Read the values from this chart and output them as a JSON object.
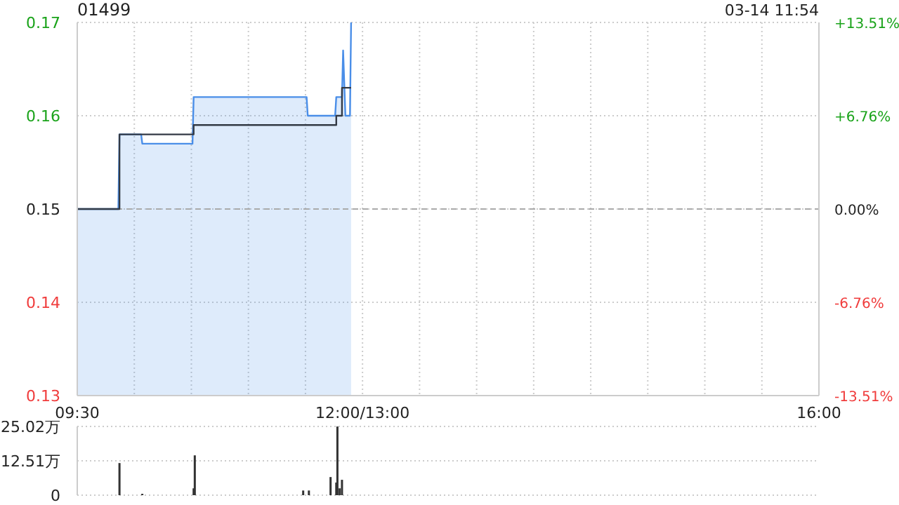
{
  "chart_data": [
    {
      "type": "area",
      "title": "01499",
      "annotations": [
        "03-14 11:54"
      ],
      "xlim": [
        9.5,
        16
      ],
      "xticks": [
        {
          "value": 9.5,
          "label": "09:30"
        },
        {
          "value": 10,
          "label": null
        },
        {
          "value": 10.5,
          "label": null
        },
        {
          "value": 11,
          "label": null
        },
        {
          "value": 11.5,
          "label": null
        },
        {
          "value": 12,
          "label": "12:00/13:00"
        },
        {
          "value": 12.5,
          "label": null
        },
        {
          "value": 13,
          "label": null
        },
        {
          "value": 13.5,
          "label": null
        },
        {
          "value": 14,
          "label": null
        },
        {
          "value": 14.5,
          "label": null
        },
        {
          "value": 15,
          "label": null
        },
        {
          "value": 15.5,
          "label": null
        },
        {
          "value": 16,
          "label": "16:00"
        }
      ],
      "ylim": [
        0.13,
        0.17
      ],
      "yticks": [
        0.13,
        0.14,
        0.15,
        0.16,
        0.17
      ],
      "y2lim": [
        -13.51,
        13.51
      ],
      "y2ticks": [
        {
          "value": -13.51,
          "label": "-13.51%"
        },
        {
          "value": -6.76,
          "label": "-6.76%"
        },
        {
          "value": 0,
          "label": "0.00%"
        },
        {
          "value": 6.76,
          "label": "+6.76%"
        },
        {
          "value": 13.51,
          "label": "+13.51%"
        }
      ],
      "grid": true,
      "marker": "none",
      "ref_lines": [
        {
          "axis": "y",
          "value": 0.15,
          "line_style": "dashed",
          "color": "#aaaaaa"
        }
      ],
      "series": [
        {
          "color": "#4a8ee8",
          "x": [
            9.5,
            9.86,
            9.87,
            10.06,
            10.07,
            10.51,
            10.52,
            11.51,
            11.52,
            11.76,
            11.77,
            11.82,
            11.83,
            11.85,
            11.89,
            11.9
          ],
          "values": [
            0.15,
            0.15,
            0.158,
            0.158,
            0.157,
            0.157,
            0.162,
            0.162,
            0.16,
            0.16,
            0.162,
            0.162,
            0.167,
            0.16,
            0.16,
            0.17
          ]
        },
        {
          "type": "step",
          "color": "#333a45",
          "x": [
            9.5,
            9.87,
            10.52,
            11.77,
            11.82,
            11.9
          ],
          "values": [
            0.15,
            0.158,
            0.159,
            0.16,
            0.163,
            0.163
          ]
        }
      ]
    },
    {
      "type": "bar",
      "tick_labels": "y",
      "xlim": [
        9.5,
        16
      ],
      "ylim": [
        0,
        25.02
      ],
      "yticks": [
        0,
        {
          "value": 12.51,
          "label": "12.51万"
        },
        {
          "value": 25.02,
          "label": "25.02万"
        }
      ],
      "grid": "y",
      "series": [
        {
          "color": "#333333",
          "x": [
            9.87,
            10.07,
            10.52,
            10.53,
            11.48,
            11.53,
            11.72,
            11.77,
            11.78,
            11.8,
            11.82
          ],
          "values": [
            11.7,
            0.5,
            2.5,
            14.5,
            1.7,
            1.7,
            6.6,
            4.6,
            25,
            2.5,
            5.6
          ]
        }
      ]
    }
  ]
}
